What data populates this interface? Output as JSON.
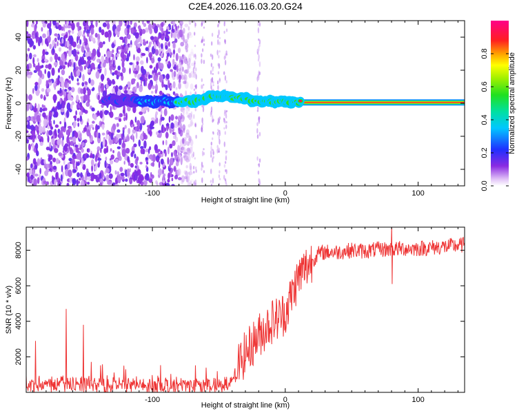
{
  "title": "C2E4.2026.116.03.20.G24",
  "chart_data": [
    {
      "type": "heatmap",
      "xlabel": "Height of straight line (km)",
      "ylabel": "Frequency (Hz)",
      "xlim": [
        -195,
        135
      ],
      "ylim": [
        -50,
        50
      ],
      "xticks": [
        -100,
        0,
        100
      ],
      "xtick_labels": [
        "-100",
        "0",
        "100"
      ],
      "yticks": [
        -40,
        -20,
        0,
        20,
        40
      ],
      "ytick_labels": [
        "-40",
        "-20",
        "0",
        "20",
        "40"
      ],
      "colorbar": {
        "label": "Normalized spectral amplitude",
        "range": [
          0,
          1
        ],
        "ticks": [
          0.0,
          0.2,
          0.4,
          0.6,
          0.8
        ],
        "tick_labels": [
          "0.0",
          "0.2",
          "0.4",
          "0.6",
          "0.8"
        ]
      },
      "description_points": {
        "noise_region_x": [
          -195,
          -75
        ],
        "signal_center_hz": [
          [
            -130,
            2
          ],
          [
            -100,
            1
          ],
          [
            -85,
            1
          ],
          [
            -75,
            1
          ],
          [
            -65,
            2
          ],
          [
            -55,
            4
          ],
          [
            -45,
            4
          ],
          [
            -35,
            3
          ],
          [
            -25,
            2
          ],
          [
            -15,
            1
          ],
          [
            -5,
            1
          ],
          [
            10,
            0.5
          ],
          [
            135,
            0.5
          ]
        ]
      }
    },
    {
      "type": "line",
      "xlabel": "Height of straight line (km)",
      "ylabel": "SNR (10 * v/v)",
      "xlim": [
        -195,
        135
      ],
      "ylim": [
        0,
        9300
      ],
      "xticks": [
        -100,
        0,
        100
      ],
      "xtick_labels": [
        "-100",
        "0",
        "100"
      ],
      "yticks": [
        2000,
        4000,
        6000,
        8000
      ],
      "ytick_labels": [
        "2000",
        "4000",
        "6000",
        "8000"
      ],
      "series": [
        {
          "name": "SNR",
          "color": "#ee3333",
          "x": [
            -195,
            -182,
            -170,
            -160,
            -150,
            -140,
            -130,
            -120,
            -110,
            -100,
            -90,
            -80,
            -70,
            -60,
            -50,
            -40,
            -35,
            -30,
            -25,
            -20,
            -15,
            -10,
            -5,
            0,
            5,
            10,
            15,
            20,
            25,
            30,
            40,
            50,
            60,
            70,
            80,
            90,
            100,
            110,
            120,
            135
          ],
          "values": [
            400,
            450,
            500,
            500,
            450,
            350,
            400,
            420,
            400,
            400,
            350,
            400,
            400,
            380,
            400,
            450,
            1500,
            2200,
            2700,
            3200,
            3600,
            4000,
            4200,
            4500,
            5500,
            6500,
            7000,
            7400,
            7800,
            7900,
            7900,
            8000,
            7950,
            8050,
            8050,
            8100,
            8100,
            8150,
            8200,
            8300
          ]
        }
      ],
      "spikes": [
        {
          "x": -188,
          "value": 2900
        },
        {
          "x": -165,
          "value": 4700
        },
        {
          "x": -152,
          "value": 3800
        },
        {
          "x": -134,
          "value": 1200
        },
        {
          "x": -112,
          "value": 900
        },
        {
          "x": 80,
          "value": 9400
        },
        {
          "x": 80.5,
          "value": 6100
        }
      ]
    }
  ]
}
